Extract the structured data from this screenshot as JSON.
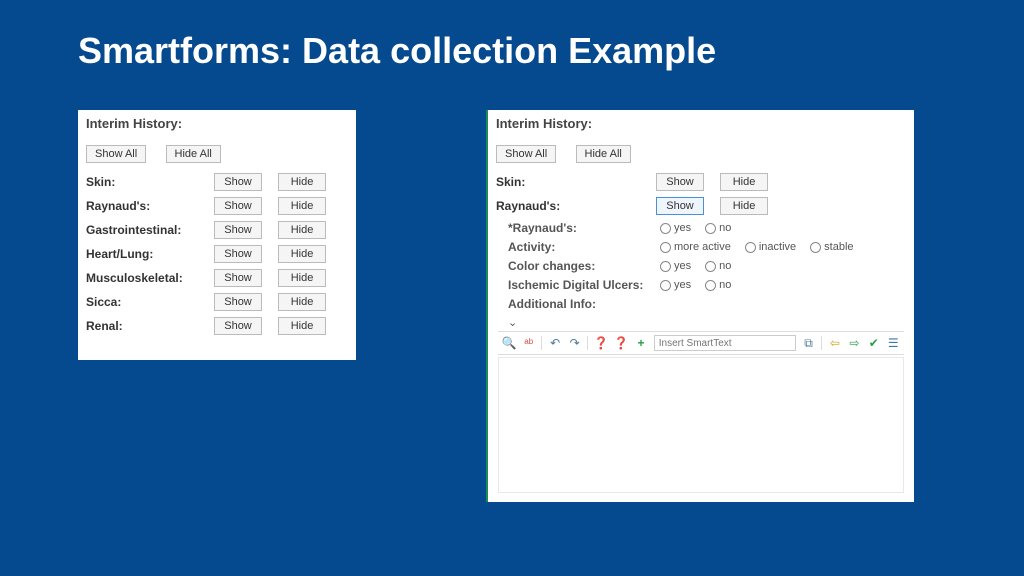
{
  "title": "Smartforms: Data collection Example",
  "left": {
    "heading": "Interim History:",
    "showAll": "Show All",
    "hideAll": "Hide All",
    "show": "Show",
    "hide": "Hide",
    "rows": [
      "Skin:",
      "Raynaud's:",
      "Gastrointestinal:",
      "Heart/Lung:",
      "Musculoskeletal:",
      "Sicca:",
      "Renal:"
    ]
  },
  "right": {
    "heading": "Interim History:",
    "showAll": "Show All",
    "hideAll": "Hide All",
    "show": "Show",
    "hide": "Hide",
    "rows": [
      "Skin:",
      "Raynaud's:"
    ],
    "sub": {
      "q1": "*Raynaud's:",
      "q2": "Activity:",
      "q3": "Color changes:",
      "q4": "Ischemic Digital Ulcers:",
      "q5": "Additional Info:",
      "yes": "yes",
      "no": "no",
      "moreActive": "more active",
      "inactive": "inactive",
      "stable": "stable"
    },
    "toolbar": {
      "placeholder": "Insert SmartText"
    }
  }
}
